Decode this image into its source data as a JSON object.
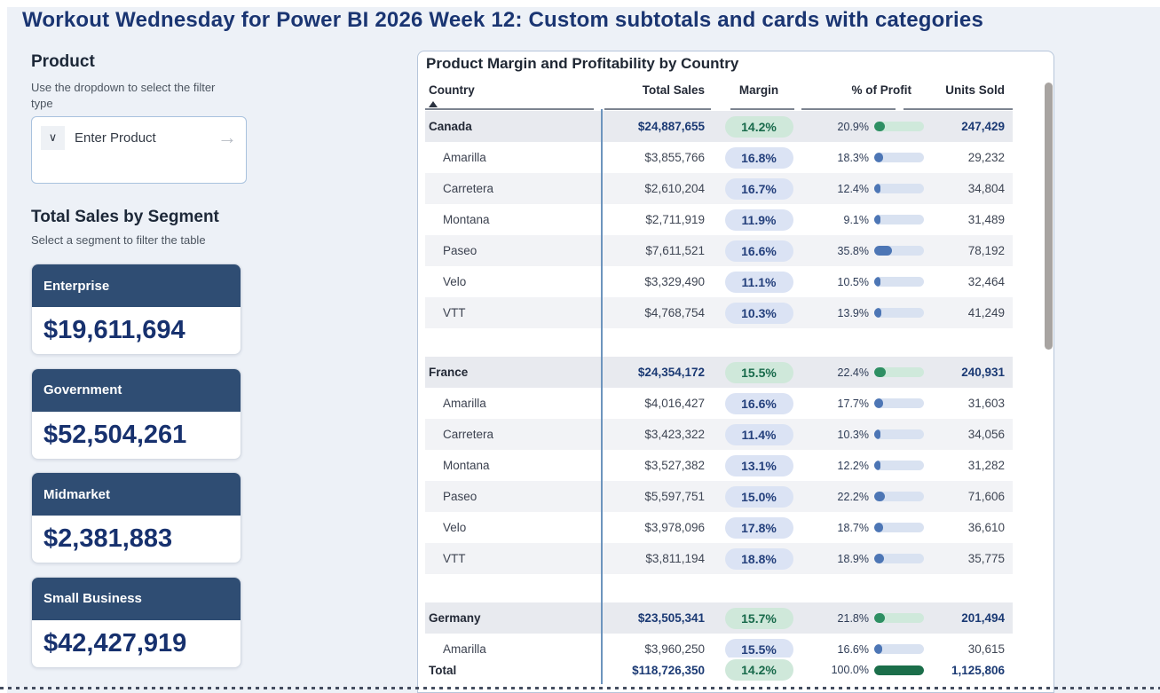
{
  "page": {
    "title": "Workout Wednesday for Power BI 2026 Week 12: Custom subtotals and cards with categories"
  },
  "product_filter": {
    "heading": "Product",
    "description": "Use the dropdown to select the filter type",
    "placeholder": "Enter Product",
    "chevron_glyph": "∨",
    "arrow_glyph": "→"
  },
  "segments": {
    "heading": "Total Sales by Segment",
    "description": "Select a segment to filter the table",
    "cards": [
      {
        "label": "Enterprise",
        "value": "$19,611,694"
      },
      {
        "label": "Government",
        "value": "$52,504,261"
      },
      {
        "label": "Midmarket",
        "value": "$2,381,883"
      },
      {
        "label": "Small Business",
        "value": "$42,427,919"
      }
    ]
  },
  "table": {
    "title": "Product Margin and Profitability by Country",
    "columns": [
      "Country",
      "Total Sales",
      "Margin",
      "% of Profit",
      "Units Sold"
    ],
    "sorted_by": "Country",
    "groups": [
      {
        "country": "Canada",
        "total_sales": "$24,887,655",
        "margin": "14.2%",
        "profit_pct": "20.9%",
        "profit_value": 20.9,
        "units": "247,429",
        "products": [
          {
            "name": "Amarilla",
            "total_sales": "$3,855,766",
            "margin": "16.8%",
            "profit_pct": "18.3%",
            "profit_value": 18.3,
            "units": "29,232"
          },
          {
            "name": "Carretera",
            "total_sales": "$2,610,204",
            "margin": "16.7%",
            "profit_pct": "12.4%",
            "profit_value": 12.4,
            "units": "34,804"
          },
          {
            "name": "Montana",
            "total_sales": "$2,711,919",
            "margin": "11.9%",
            "profit_pct": "9.1%",
            "profit_value": 9.1,
            "units": "31,489"
          },
          {
            "name": "Paseo",
            "total_sales": "$7,611,521",
            "margin": "16.6%",
            "profit_pct": "35.8%",
            "profit_value": 35.8,
            "units": "78,192"
          },
          {
            "name": "Velo",
            "total_sales": "$3,329,490",
            "margin": "11.1%",
            "profit_pct": "10.5%",
            "profit_value": 10.5,
            "units": "32,464"
          },
          {
            "name": "VTT",
            "total_sales": "$4,768,754",
            "margin": "10.3%",
            "profit_pct": "13.9%",
            "profit_value": 13.9,
            "units": "41,249"
          }
        ]
      },
      {
        "country": "France",
        "total_sales": "$24,354,172",
        "margin": "15.5%",
        "profit_pct": "22.4%",
        "profit_value": 22.4,
        "units": "240,931",
        "products": [
          {
            "name": "Amarilla",
            "total_sales": "$4,016,427",
            "margin": "16.6%",
            "profit_pct": "17.7%",
            "profit_value": 17.7,
            "units": "31,603"
          },
          {
            "name": "Carretera",
            "total_sales": "$3,423,322",
            "margin": "11.4%",
            "profit_pct": "10.3%",
            "profit_value": 10.3,
            "units": "34,056"
          },
          {
            "name": "Montana",
            "total_sales": "$3,527,382",
            "margin": "13.1%",
            "profit_pct": "12.2%",
            "profit_value": 12.2,
            "units": "31,282"
          },
          {
            "name": "Paseo",
            "total_sales": "$5,597,751",
            "margin": "15.0%",
            "profit_pct": "22.2%",
            "profit_value": 22.2,
            "units": "71,606"
          },
          {
            "name": "Velo",
            "total_sales": "$3,978,096",
            "margin": "17.8%",
            "profit_pct": "18.7%",
            "profit_value": 18.7,
            "units": "36,610"
          },
          {
            "name": "VTT",
            "total_sales": "$3,811,194",
            "margin": "18.8%",
            "profit_pct": "18.9%",
            "profit_value": 18.9,
            "units": "35,775"
          }
        ]
      },
      {
        "country": "Germany",
        "total_sales": "$23,505,341",
        "margin": "15.7%",
        "profit_pct": "21.8%",
        "profit_value": 21.8,
        "units": "201,494",
        "products": [
          {
            "name": "Amarilla",
            "total_sales": "$3,960,250",
            "margin": "15.5%",
            "profit_pct": "16.6%",
            "profit_value": 16.6,
            "units": "30,615"
          }
        ]
      }
    ],
    "total_row": {
      "name": "Total",
      "total_sales": "$118,726,350",
      "margin": "14.2%",
      "profit_pct": "100.0%",
      "profit_value": 100,
      "units": "1,125,806"
    },
    "colors": {
      "subtotal_pill_bg": "#cfe8da",
      "subtotal_pill_text": "#186a4b",
      "product_pill_bg": "#dbe3f4",
      "product_pill_text": "#24407c",
      "subtotal_bar_fill": "#2e8f63",
      "subtotal_bar_track": "#cfe9db",
      "product_bar_fill": "#4d76b5",
      "product_bar_track": "#d9e2f1",
      "total_bar_fill": "#1b6e4a",
      "total_bar_track": "#cfe9db",
      "card_header": "#2f4d73",
      "accent_navy": "#17316e"
    }
  }
}
